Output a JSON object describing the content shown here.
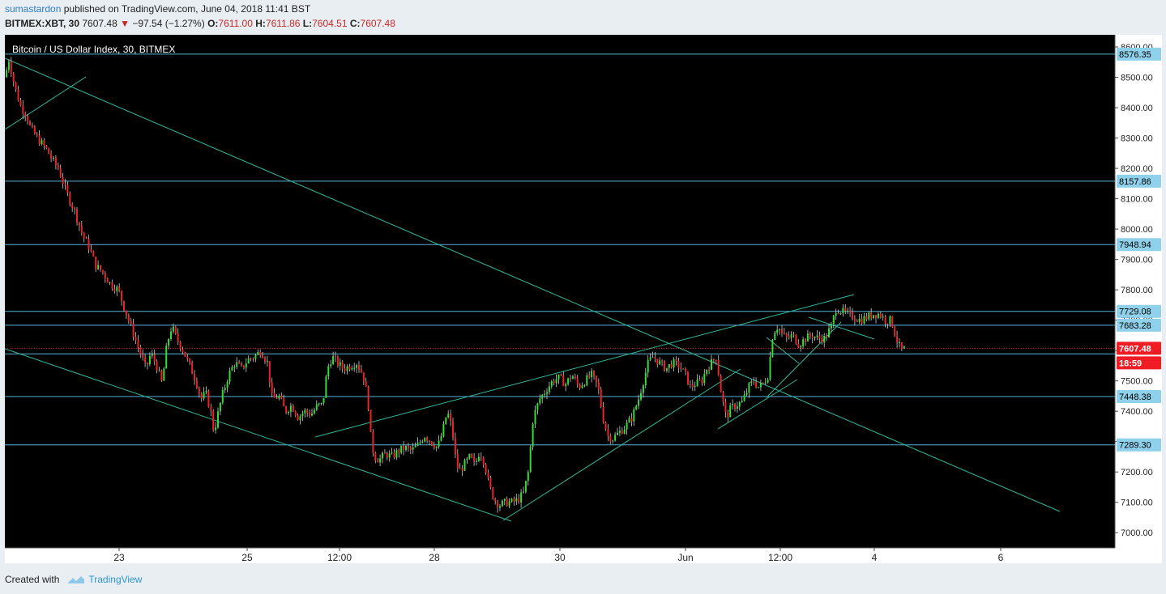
{
  "header": {
    "author": "sumastardon",
    "published_text": "published on TradingView.com, June 04, 2018 11:41 BST",
    "symbol": "BITMEX:XBT, 30",
    "last": "7607.48",
    "change": "−97.54 (−1.27%)",
    "open_label": "O:",
    "open": "7611.00",
    "high_label": "H:",
    "high": "7611.86",
    "low_label": "L:",
    "low": "7604.51",
    "close_label": "C:",
    "close": "7607.48"
  },
  "colors": {
    "background": "#000000",
    "up": "#33dd33",
    "down": "#ee2222",
    "trendline": "#2fb89a",
    "hline": "#5ab4d6",
    "price_tag": "#ef1c24"
  },
  "chart_data": {
    "type": "candlestick",
    "title": "Bitcoin / US Dollar Index, 30, BITMEX",
    "xlabel": "",
    "ylabel": "",
    "ylim": [
      6950,
      8640
    ],
    "y_ticks": [
      "7000.00",
      "7100.00",
      "7200.00",
      "7300.00",
      "7400.00",
      "7500.00",
      "7600.00",
      "7700.00",
      "7800.00",
      "7900.00",
      "8000.00",
      "8100.00",
      "8200.00",
      "8300.00",
      "8400.00",
      "8500.00",
      "8600.00"
    ],
    "x_tick_labels": [
      "23",
      "25",
      "12:00",
      "28",
      "30",
      "Jun",
      "12:00",
      "4",
      "6"
    ],
    "price_path": [
      [
        0,
        8500
      ],
      [
        5,
        8560
      ],
      [
        12,
        8470
      ],
      [
        20,
        8400
      ],
      [
        26,
        8380
      ],
      [
        32,
        8330
      ],
      [
        40,
        8300
      ],
      [
        52,
        8260
      ],
      [
        58,
        8230
      ],
      [
        66,
        8200
      ],
      [
        76,
        8120
      ],
      [
        86,
        8060
      ],
      [
        96,
        7980
      ],
      [
        104,
        7940
      ],
      [
        112,
        7880
      ],
      [
        120,
        7860
      ],
      [
        130,
        7820
      ],
      [
        140,
        7800
      ],
      [
        150,
        7720
      ],
      [
        158,
        7660
      ],
      [
        166,
        7600
      ],
      [
        174,
        7540
      ],
      [
        180,
        7590
      ],
      [
        186,
        7560
      ],
      [
        194,
        7490
      ],
      [
        200,
        7620
      ],
      [
        206,
        7680
      ],
      [
        212,
        7640
      ],
      [
        220,
        7600
      ],
      [
        228,
        7550
      ],
      [
        236,
        7500
      ],
      [
        242,
        7440
      ],
      [
        248,
        7460
      ],
      [
        254,
        7400
      ],
      [
        258,
        7330
      ],
      [
        262,
        7380
      ],
      [
        268,
        7450
      ],
      [
        276,
        7520
      ],
      [
        284,
        7560
      ],
      [
        292,
        7540
      ],
      [
        300,
        7570
      ],
      [
        308,
        7580
      ],
      [
        316,
        7600
      ],
      [
        324,
        7560
      ],
      [
        330,
        7440
      ],
      [
        338,
        7450
      ],
      [
        346,
        7400
      ],
      [
        354,
        7420
      ],
      [
        362,
        7380
      ],
      [
        370,
        7400
      ],
      [
        378,
        7390
      ],
      [
        386,
        7420
      ],
      [
        392,
        7420
      ],
      [
        398,
        7540
      ],
      [
        404,
        7580
      ],
      [
        410,
        7560
      ],
      [
        418,
        7540
      ],
      [
        426,
        7550
      ],
      [
        434,
        7560
      ],
      [
        442,
        7520
      ],
      [
        448,
        7440
      ],
      [
        452,
        7300
      ],
      [
        456,
        7250
      ],
      [
        462,
        7240
      ],
      [
        470,
        7260
      ],
      [
        478,
        7250
      ],
      [
        486,
        7270
      ],
      [
        494,
        7280
      ],
      [
        502,
        7270
      ],
      [
        510,
        7290
      ],
      [
        518,
        7320
      ],
      [
        526,
        7300
      ],
      [
        534,
        7280
      ],
      [
        540,
        7330
      ],
      [
        546,
        7400
      ],
      [
        552,
        7340
      ],
      [
        556,
        7250
      ],
      [
        560,
        7200
      ],
      [
        566,
        7220
      ],
      [
        574,
        7250
      ],
      [
        580,
        7220
      ],
      [
        586,
        7270
      ],
      [
        592,
        7230
      ],
      [
        598,
        7150
      ],
      [
        604,
        7110
      ],
      [
        610,
        7090
      ],
      [
        618,
        7100
      ],
      [
        626,
        7100
      ],
      [
        634,
        7110
      ],
      [
        640,
        7130
      ],
      [
        646,
        7200
      ],
      [
        652,
        7380
      ],
      [
        660,
        7440
      ],
      [
        668,
        7470
      ],
      [
        676,
        7500
      ],
      [
        684,
        7510
      ],
      [
        692,
        7490
      ],
      [
        700,
        7520
      ],
      [
        708,
        7480
      ],
      [
        716,
        7500
      ],
      [
        724,
        7520
      ],
      [
        732,
        7480
      ],
      [
        738,
        7380
      ],
      [
        744,
        7320
      ],
      [
        750,
        7310
      ],
      [
        758,
        7330
      ],
      [
        766,
        7350
      ],
      [
        774,
        7380
      ],
      [
        782,
        7440
      ],
      [
        788,
        7500
      ],
      [
        794,
        7560
      ],
      [
        800,
        7580
      ],
      [
        808,
        7560
      ],
      [
        816,
        7540
      ],
      [
        824,
        7560
      ],
      [
        832,
        7550
      ],
      [
        840,
        7520
      ],
      [
        846,
        7480
      ],
      [
        852,
        7490
      ],
      [
        860,
        7500
      ],
      [
        866,
        7540
      ],
      [
        872,
        7560
      ],
      [
        878,
        7580
      ],
      [
        884,
        7460
      ],
      [
        890,
        7380
      ],
      [
        896,
        7410
      ],
      [
        902,
        7420
      ],
      [
        910,
        7430
      ],
      [
        918,
        7480
      ],
      [
        924,
        7500
      ],
      [
        930,
        7480
      ],
      [
        936,
        7490
      ],
      [
        942,
        7520
      ],
      [
        948,
        7660
      ],
      [
        954,
        7680
      ],
      [
        960,
        7650
      ],
      [
        966,
        7640
      ],
      [
        972,
        7650
      ],
      [
        980,
        7620
      ],
      [
        988,
        7640
      ],
      [
        996,
        7650
      ],
      [
        1004,
        7640
      ],
      [
        1012,
        7640
      ],
      [
        1020,
        7680
      ],
      [
        1026,
        7740
      ],
      [
        1032,
        7730
      ],
      [
        1040,
        7720
      ],
      [
        1048,
        7710
      ],
      [
        1056,
        7700
      ],
      [
        1064,
        7710
      ],
      [
        1072,
        7720
      ],
      [
        1080,
        7720
      ],
      [
        1086,
        7700
      ],
      [
        1094,
        7700
      ],
      [
        1100,
        7640
      ],
      [
        1106,
        7600
      ],
      [
        1112,
        7607
      ]
    ],
    "horizontal_levels": [
      8576.35,
      8157.86,
      7948.94,
      7729.08,
      7683.28,
      7589.0,
      7448.38,
      7289.3
    ],
    "price_labels": [
      "8576.35",
      "8157.86",
      "7948.94",
      "7729.08",
      "7683.28",
      "7607.48",
      "18:59",
      "7448.38",
      "7289.30"
    ],
    "current_price": 7607.48,
    "countdown": "18:59",
    "legend": "top-left"
  },
  "footer": {
    "created_with": "Created with",
    "brand": "TradingView"
  }
}
